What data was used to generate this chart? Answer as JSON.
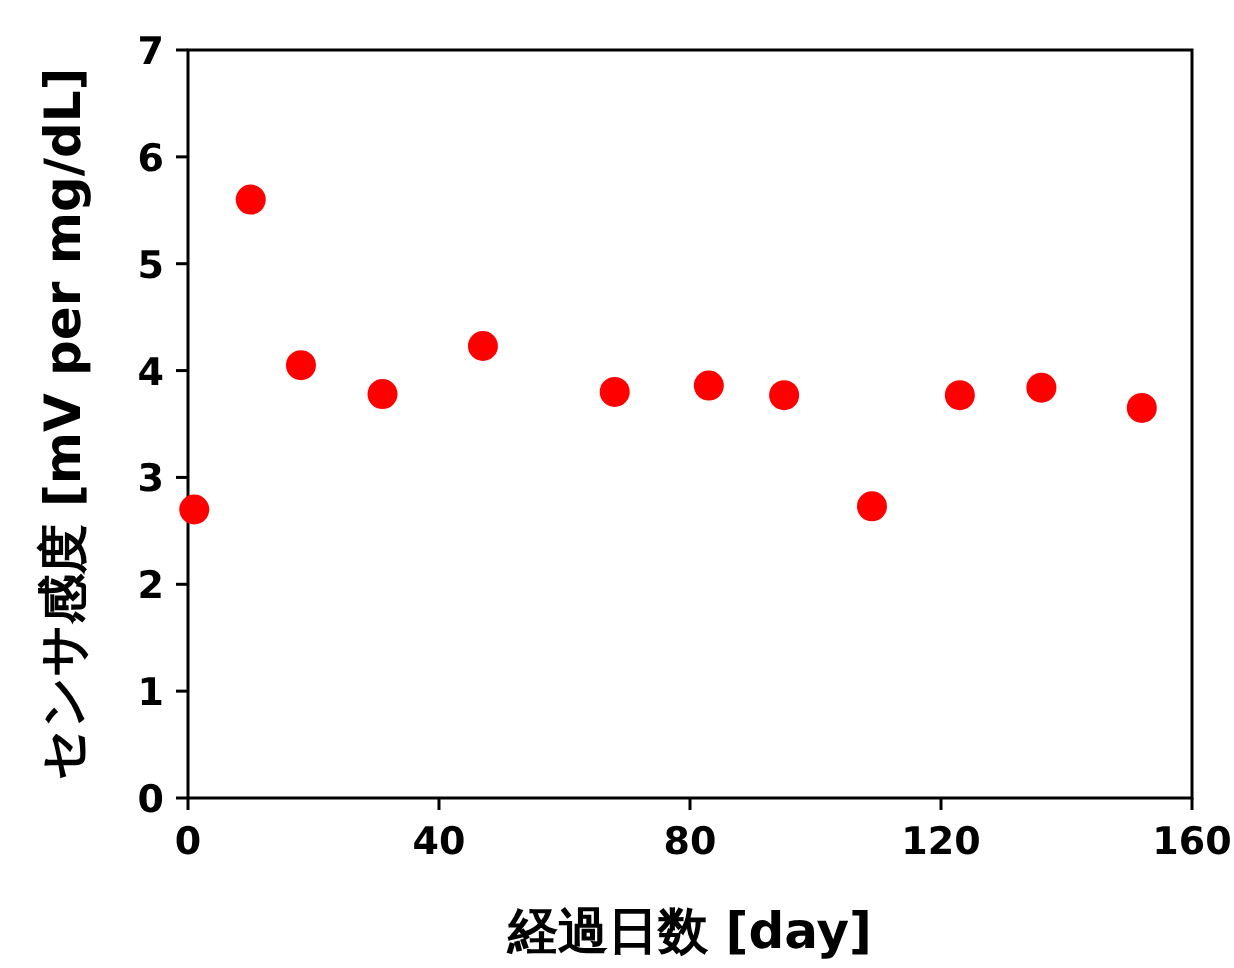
{
  "chart_data": {
    "type": "scatter",
    "xlabel": "経過日数 [day]",
    "ylabel": "センサ感度 [mV per mg/dL]",
    "x": [
      1,
      10,
      18,
      31,
      47,
      68,
      83,
      95,
      109,
      123,
      136,
      152
    ],
    "series": [
      {
        "color": "#ff0000",
        "values": [
          2.7,
          5.6,
          4.05,
          3.78,
          4.23,
          3.8,
          3.86,
          3.77,
          2.73,
          3.77,
          3.84,
          3.65
        ]
      }
    ],
    "xlim": [
      0,
      160
    ],
    "xticks": [
      0,
      40,
      80,
      120,
      160
    ],
    "ylim": [
      0,
      7
    ],
    "yticks": [
      0,
      1,
      2,
      3,
      4,
      5,
      6,
      7
    ],
    "marker": "circle"
  }
}
